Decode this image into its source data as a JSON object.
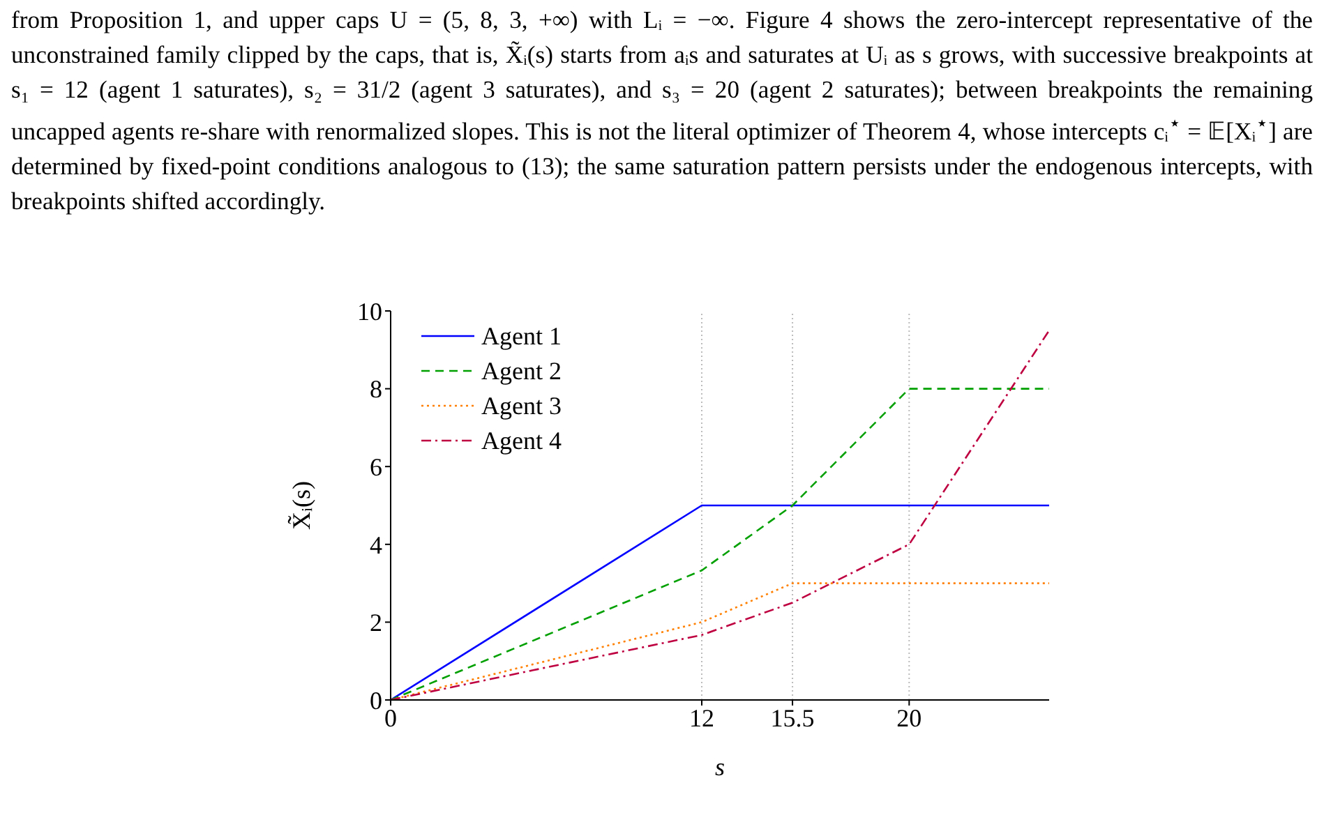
{
  "chart_data": {
    "type": "line",
    "annotations": [
      "from Proposition 1, and upper caps U = (5, 8, 3, +∞) with Lᵢ = −∞. Figure 4 shows the zero-intercept representative of the unconstrained family clipped by the caps, that is, X̃ᵢ(s) starts from aᵢs and saturates at Uᵢ as s grows, with successive breakpoints at s₁ = 12 (agent 1 saturates), s₂ = 31/2 (agent 3 saturates), and s₃ = 20 (agent 2 saturates); between breakpoints the remaining uncapped agents re-share with renormalized slopes. This is not the literal optimizer of Theorem 4, whose intercepts cᵢ$^{⋆}$ = 𝔼[Xᵢ$^{⋆}$] are determined by fixed-point conditions analogous to (13); the same saturation pattern persists under the endogenous intercepts, with breakpoints shifted accordingly."
    ],
    "xlabel": "s",
    "ylabel": "X̃ᵢ(s)",
    "x": [
      0,
      12,
      15.5,
      20,
      25.4
    ],
    "series": [
      {
        "name": "Agent 1",
        "color": "#0000ff",
        "line_style": "solid",
        "values": [
          0,
          5,
          5,
          5,
          5
        ]
      },
      {
        "name": "Agent 2",
        "color": "#00a000",
        "line_style": "dashed",
        "values": [
          0,
          3.33,
          5,
          8,
          8
        ]
      },
      {
        "name": "Agent 3",
        "color": "#ff8000",
        "line_style": "dotted",
        "values": [
          0,
          2,
          3,
          3,
          3
        ]
      },
      {
        "name": "Agent 4",
        "color": "#bf0040",
        "line_style": "dashdot",
        "values": [
          0,
          1.67,
          2.5,
          4,
          9.5
        ]
      }
    ],
    "xlim": [
      0,
      25.4
    ],
    "xticks": [
      0,
      12,
      15.5,
      20
    ],
    "ylim": [
      0,
      10
    ],
    "yticks": [
      0,
      2,
      4,
      6,
      8,
      10
    ],
    "grid": "x",
    "legend": "top left",
    "marker": "none"
  }
}
